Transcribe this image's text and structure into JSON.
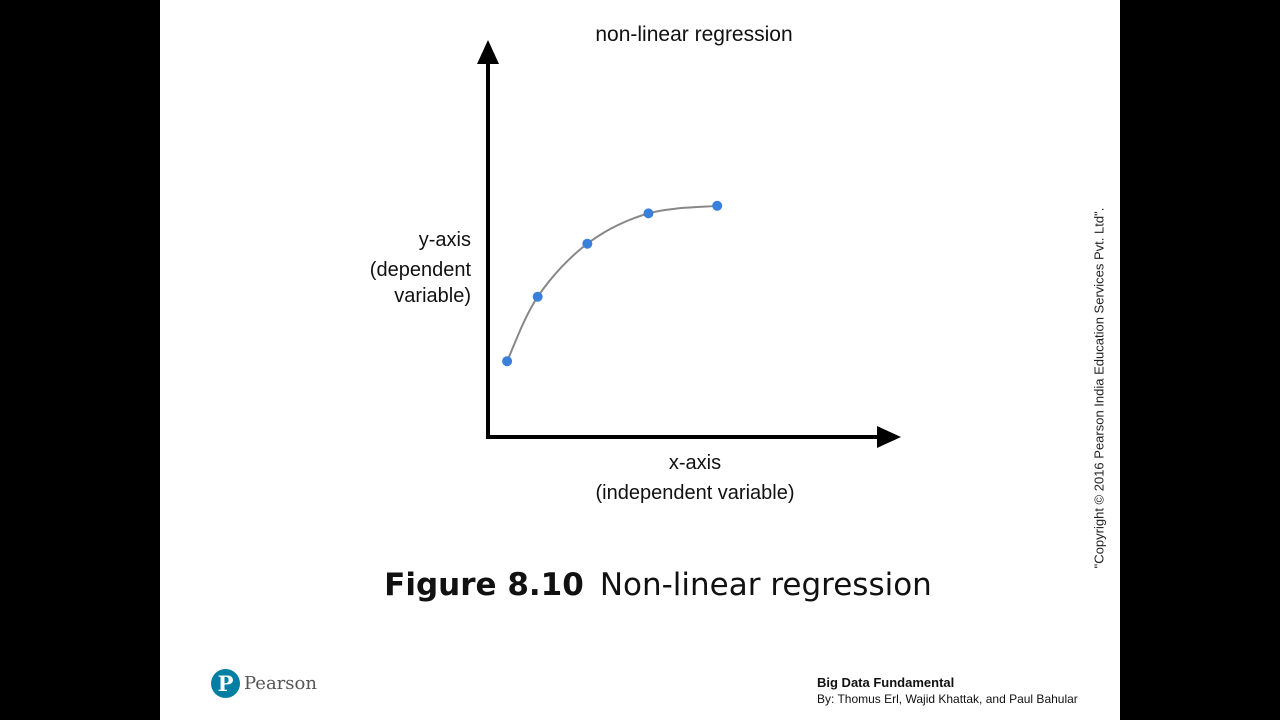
{
  "chart_data": {
    "type": "scatter",
    "title": "non-linear regression",
    "xlabel": [
      "x-axis",
      "(independent variable)"
    ],
    "ylabel": [
      "y-axis",
      "(dependent",
      "variable)"
    ],
    "xlim": [
      0,
      10
    ],
    "ylim": [
      0,
      10
    ],
    "grid": false,
    "legend": "none",
    "points": {
      "x": [
        0.5,
        1.3,
        2.6,
        4.2,
        6.0
      ],
      "y": [
        2.0,
        3.7,
        5.1,
        5.9,
        6.1
      ]
    },
    "curve": {
      "x": [
        0.5,
        1.3,
        2.6,
        4.2,
        6.0
      ],
      "y": [
        2.0,
        3.7,
        5.1,
        5.9,
        6.1
      ]
    },
    "point_color": "#3a7fd9",
    "curve_color": "#888888",
    "axis_color": "#000000"
  },
  "caption": {
    "figure_number": "Figure 8.10",
    "text": "Non-linear regression"
  },
  "copyright": "\"Copyright © 2016 Pearson India Education Services Pvt. Ltd\".",
  "logo": {
    "mark": "P",
    "name": "Pearson",
    "color": "#007fa3"
  },
  "book": {
    "title": "Big Data Fundamental",
    "authors": "By: Thomus Erl, Wajid Khattak, and Paul Bahular"
  }
}
